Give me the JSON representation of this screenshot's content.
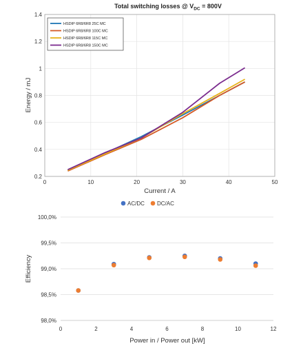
{
  "chart_data": [
    {
      "type": "line",
      "title_main": "Total switching losses @ V",
      "title_sub": "DC",
      "title_tail": " = 800V",
      "xlabel": "Current / A",
      "ylabel": "Energy / mJ",
      "xlim": [
        0,
        50
      ],
      "ylim": [
        0.2,
        1.4
      ],
      "xticks": [
        "0",
        "10",
        "20",
        "30",
        "40",
        "50"
      ],
      "xtick_values": [
        0,
        10,
        20,
        30,
        40,
        50
      ],
      "yticks": [
        "0.2",
        "0.4",
        "0.6",
        "0.8",
        "1",
        "1.2",
        "1.4"
      ],
      "ytick_values": [
        0.2,
        0.4,
        0.6,
        0.8,
        1.0,
        1.2,
        1.4
      ],
      "grid": true,
      "legend_position": "top-left",
      "series": [
        {
          "name": "HSDIP 6R8/6R8 25C MC",
          "color": "#1f77b4",
          "x": [
            5,
            13,
            21,
            30,
            38,
            43.5
          ],
          "y": [
            0.245,
            0.37,
            0.495,
            0.655,
            0.8,
            0.9
          ]
        },
        {
          "name": "HSDIP 6R8/6R8 100C MC",
          "color": "#d45a25",
          "x": [
            5,
            13,
            21,
            30,
            38,
            43.5
          ],
          "y": [
            0.24,
            0.36,
            0.475,
            0.635,
            0.8,
            0.9
          ]
        },
        {
          "name": "HSDIP 6R8/6R8 115C MC",
          "color": "#e8b219",
          "x": [
            5,
            13,
            21,
            30,
            38,
            43.5
          ],
          "y": [
            0.245,
            0.365,
            0.485,
            0.665,
            0.815,
            0.92
          ]
        },
        {
          "name": "HSDIP 6R8/6R8 150C MC",
          "color": "#7b2c8e",
          "x": [
            5,
            13,
            21,
            30,
            38,
            43.5
          ],
          "y": [
            0.25,
            0.375,
            0.485,
            0.675,
            0.89,
            1.005
          ]
        }
      ]
    },
    {
      "type": "scatter",
      "xlabel": "Power in / Power out [kW]",
      "ylabel": "Efficiency",
      "xlim": [
        0,
        12
      ],
      "ylim": [
        98.0,
        100.0
      ],
      "xticks": [
        "0",
        "2",
        "4",
        "6",
        "8",
        "10",
        "12"
      ],
      "xtick_values": [
        0,
        2,
        4,
        6,
        8,
        10,
        12
      ],
      "yticks": [
        "98,0%",
        "98,5%",
        "99,0%",
        "99,5%",
        "100,0%"
      ],
      "ytick_values": [
        98.0,
        98.5,
        99.0,
        99.5,
        100.0
      ],
      "grid": "horizontal",
      "legend_position": "top-center",
      "series": [
        {
          "name": "AC/DC",
          "color": "#4472c4",
          "x": [
            1,
            3,
            5,
            7,
            9,
            11
          ],
          "y": [
            98.58,
            99.09,
            99.22,
            99.25,
            99.2,
            99.1
          ]
        },
        {
          "name": "DC/AC",
          "color": "#ed7d31",
          "x": [
            1,
            3,
            5,
            7,
            9,
            11
          ],
          "y": [
            98.58,
            99.07,
            99.21,
            99.23,
            99.18,
            99.06
          ]
        }
      ]
    }
  ]
}
